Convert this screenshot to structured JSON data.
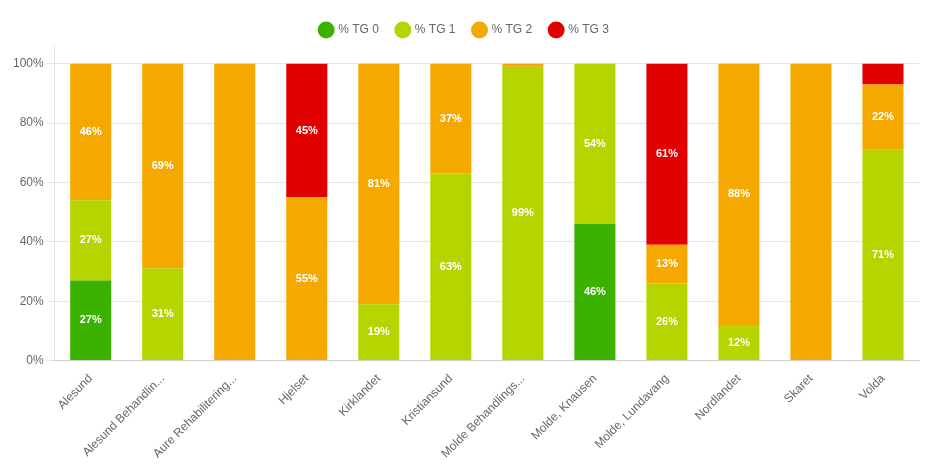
{
  "chart_data": {
    "type": "bar",
    "stacked": true,
    "categories": [
      "Alesund",
      "Alesund Behandlin...",
      "Aure Rehabilitering...",
      "Hjelset",
      "Kirklandet",
      "Kristiansund",
      "Molde Behandlings...",
      "Molde, Knausen",
      "Molde, Lundavang",
      "Nordlandet",
      "Skaret",
      "Volda"
    ],
    "series": [
      {
        "name": "% TG 0",
        "color": "#3cb200",
        "values": [
          27,
          0,
          0,
          0,
          0,
          0,
          0,
          46,
          0,
          0,
          0,
          0
        ],
        "value_labels": [
          "27%",
          null,
          null,
          null,
          null,
          null,
          null,
          "46%",
          null,
          null,
          null,
          null
        ]
      },
      {
        "name": "% TG 1",
        "color": "#b5d400",
        "values": [
          27,
          31,
          0,
          0,
          19,
          63,
          99,
          54,
          26,
          12,
          0,
          71
        ],
        "value_labels": [
          "27%",
          "31%",
          null,
          null,
          "19%",
          "63%",
          "99%",
          "54%",
          "26%",
          "12%",
          null,
          "71%"
        ]
      },
      {
        "name": "% TG 2",
        "color": "#f5a800",
        "values": [
          46,
          69,
          100,
          55,
          81,
          37,
          1,
          0,
          13,
          88,
          100,
          22
        ],
        "value_labels": [
          "46%",
          "69%",
          null,
          "55%",
          "81%",
          "37%",
          null,
          null,
          "13%",
          "88%",
          null,
          "22%"
        ]
      },
      {
        "name": "% TG 3",
        "color": "#e00000",
        "values": [
          0,
          0,
          0,
          45,
          0,
          0,
          0,
          0,
          61,
          0,
          0,
          7
        ],
        "value_labels": [
          null,
          null,
          null,
          "45%",
          null,
          null,
          null,
          null,
          "61%",
          null,
          null,
          null
        ]
      }
    ],
    "ylim": [
      0,
      106
    ],
    "yticks": [
      {
        "value": 0,
        "label": "0%"
      },
      {
        "value": 20,
        "label": "20%"
      },
      {
        "value": 40,
        "label": "40%"
      },
      {
        "value": 60,
        "label": "60%"
      },
      {
        "value": 80,
        "label": "80%"
      },
      {
        "value": 100,
        "label": "100%"
      }
    ],
    "grid": true,
    "legend": "top",
    "data_labels": true
  }
}
